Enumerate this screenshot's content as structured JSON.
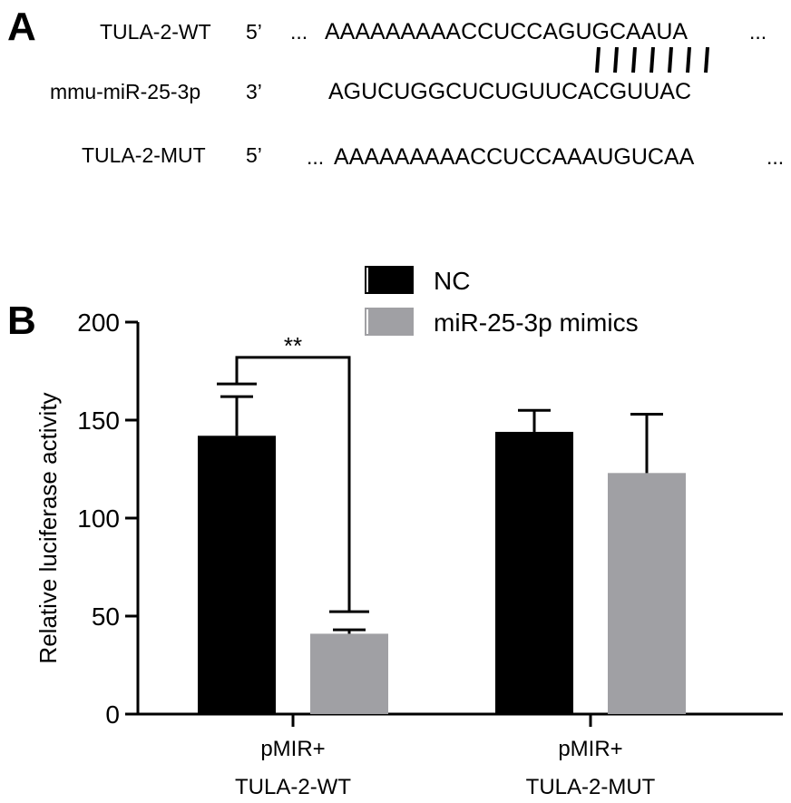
{
  "panel_a": {
    "label": "A",
    "rows": [
      {
        "name": "TULA-2-WT",
        "end": "5’",
        "lead": "...",
        "sequence": "AAAAAAAAACCUCCAGUGCAAUA",
        "trail": "..."
      },
      {
        "name": "mmu-miR-25-3p",
        "end": "3’",
        "lead": "",
        "sequence": "AGUCUGGCUCUGUUCACGUUAC",
        "trail": ""
      },
      {
        "name": "TULA-2-MUT",
        "end": "5’",
        "lead": "...",
        "sequence": "AAAAAAAAACCUCCAAAUGUCAA",
        "trail": "..."
      }
    ],
    "pairing_count": 7
  },
  "panel_b": {
    "label": "B"
  },
  "chart_data": {
    "type": "bar",
    "ylabel": "Relative luciferase activity",
    "xlabel": "",
    "ylim": [
      0,
      200
    ],
    "yticks": [
      0,
      50,
      100,
      150,
      200
    ],
    "categories": [
      {
        "line1": "pMIR+",
        "line2": "TULA-2-WT"
      },
      {
        "line1": "pMIR+",
        "line2": "TULA-2-MUT"
      }
    ],
    "series": [
      {
        "name": "NC",
        "color": "#000000",
        "values": [
          142,
          144
        ],
        "errors": [
          20,
          11
        ]
      },
      {
        "name": "miR-25-3p mimics",
        "color": "#a0a0a4",
        "values": [
          41,
          123
        ],
        "errors": [
          2,
          30
        ]
      }
    ],
    "significance": {
      "label": "**",
      "between": [
        "NC",
        "miR-25-3p mimics"
      ],
      "category_index": 0,
      "y": 182
    },
    "legend": "top-center",
    "grid": false
  }
}
